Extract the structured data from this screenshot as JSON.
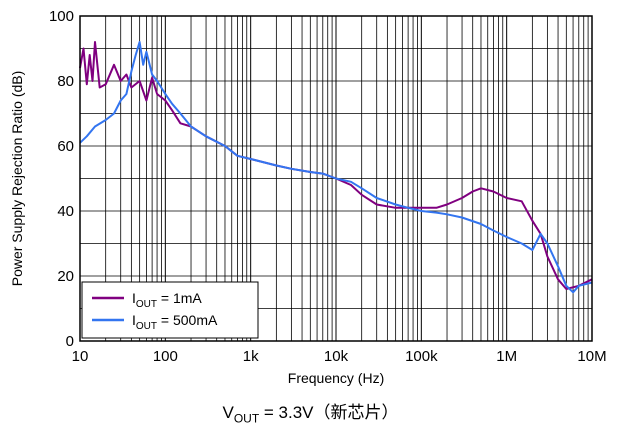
{
  "chart_data": {
    "type": "line",
    "xlabel": "Frequency (Hz)",
    "ylabel": "Power Supply Rejection Ratio (dB)",
    "xscale": "log",
    "xlim": [
      10,
      10000000
    ],
    "ylim": [
      0,
      100
    ],
    "grid": true,
    "x_ticks": [
      {
        "value": 10,
        "label": "10"
      },
      {
        "value": 100,
        "label": "100"
      },
      {
        "value": 1000,
        "label": "1k"
      },
      {
        "value": 10000,
        "label": "10k"
      },
      {
        "value": 100000,
        "label": "100k"
      },
      {
        "value": 1000000,
        "label": "1M"
      },
      {
        "value": 10000000,
        "label": "10M"
      }
    ],
    "y_ticks": [
      {
        "value": 0,
        "label": "0"
      },
      {
        "value": 20,
        "label": "20"
      },
      {
        "value": 40,
        "label": "40"
      },
      {
        "value": 60,
        "label": "60"
      },
      {
        "value": 80,
        "label": "80"
      },
      {
        "value": 100,
        "label": "100"
      }
    ],
    "legend_position": "bottom-left",
    "series": [
      {
        "name": "I_OUT = 1mA",
        "label_main": "I",
        "label_sub": "OUT",
        "label_rest": " = 1mA",
        "color": "#800080",
        "x": [
          10,
          11,
          12,
          13,
          14,
          15,
          17,
          20,
          25,
          30,
          35,
          40,
          50,
          60,
          70,
          80,
          100,
          120,
          150,
          200,
          300,
          500,
          700,
          1000,
          2000,
          3000,
          5000,
          7000,
          10000,
          15000,
          20000,
          30000,
          50000,
          70000,
          100000,
          150000,
          200000,
          300000,
          400000,
          500000,
          700000,
          1000000,
          1500000,
          2000000,
          2500000,
          3000000,
          4000000,
          5000000,
          7000000,
          10000000
        ],
        "y": [
          84,
          90,
          79,
          88,
          80,
          92,
          78,
          79,
          85,
          80,
          82,
          78,
          80,
          74,
          81,
          76,
          74,
          71,
          67,
          66,
          63,
          60,
          57,
          56,
          54,
          53,
          52,
          51.5,
          50,
          48,
          45,
          42,
          41,
          41,
          41,
          41,
          42,
          44,
          46,
          47,
          46,
          44,
          43,
          37,
          33,
          26,
          19,
          16,
          17,
          19
        ]
      },
      {
        "name": "I_OUT = 500mA",
        "label_main": "I",
        "label_sub": "OUT",
        "label_rest": " = 500mA",
        "color": "#3375f0",
        "x": [
          10,
          12,
          15,
          20,
          25,
          30,
          35,
          40,
          45,
          50,
          55,
          60,
          70,
          80,
          100,
          120,
          150,
          200,
          300,
          500,
          700,
          1000,
          2000,
          3000,
          5000,
          7000,
          10000,
          15000,
          20000,
          30000,
          50000,
          70000,
          100000,
          150000,
          200000,
          300000,
          500000,
          700000,
          1000000,
          1500000,
          2000000,
          2500000,
          3000000,
          4000000,
          5000000,
          6000000,
          7000000,
          10000000
        ],
        "y": [
          61,
          63,
          66,
          68,
          70,
          74,
          76,
          83,
          88,
          92,
          85,
          89,
          82,
          80,
          76,
          73,
          70,
          66,
          63,
          60,
          57,
          56,
          54,
          53,
          52,
          51.5,
          50,
          49,
          47,
          44,
          42,
          41,
          40,
          39.5,
          39,
          38,
          36,
          34,
          32,
          30,
          28,
          33,
          30,
          23,
          17,
          15,
          17,
          18
        ]
      }
    ]
  },
  "caption": {
    "main": "V",
    "sub": "OUT",
    "rest": " = 3.3V（新芯片）"
  }
}
